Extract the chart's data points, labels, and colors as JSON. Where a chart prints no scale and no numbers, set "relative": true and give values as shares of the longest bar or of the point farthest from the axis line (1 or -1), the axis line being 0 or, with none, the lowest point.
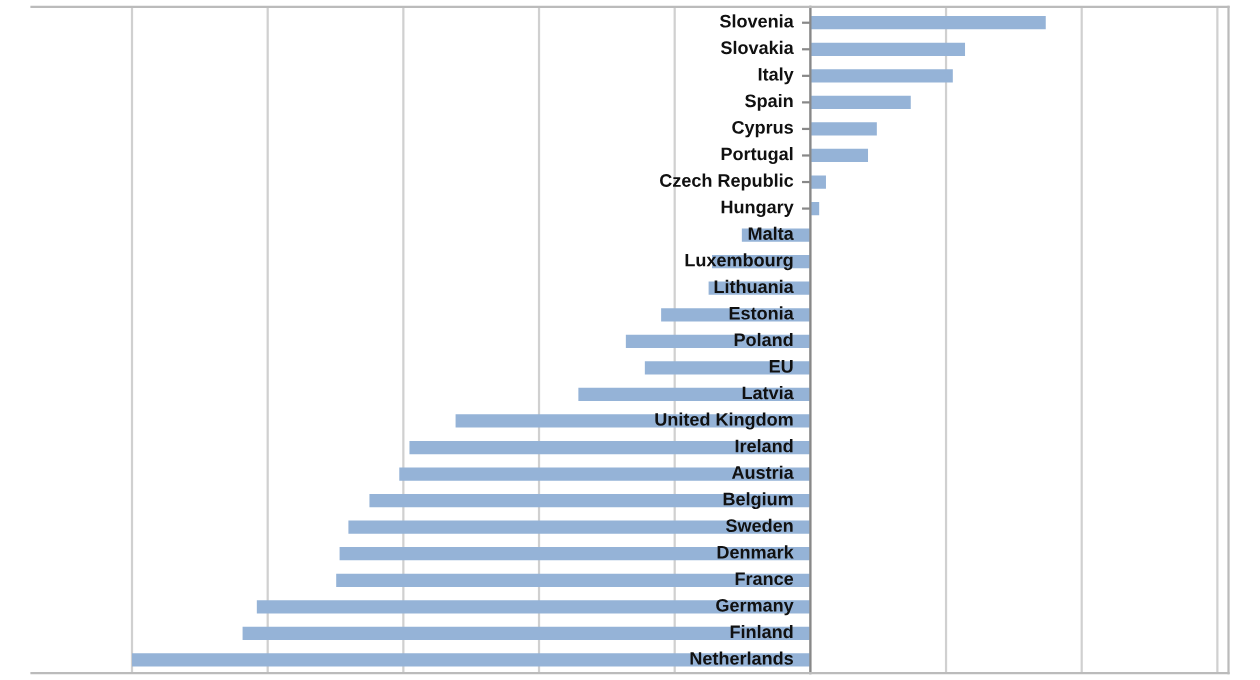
{
  "chart_data": {
    "type": "bar",
    "orientation": "horizontal",
    "relative": true,
    "grid": "x",
    "color": "#95b3d7",
    "categories": [
      "Slovenia",
      "Slovakia",
      "Italy",
      "Spain",
      "Cyprus",
      "Portugal",
      "Czech Republic",
      "Hungary",
      "Malta",
      "Luxembourg",
      "Lithuania",
      "Estonia",
      "Poland",
      "EU",
      "Latvia",
      "United Kingdom",
      "Ireland",
      "Austria",
      "Belgium",
      "Sweden",
      "Denmark",
      "France",
      "Germany",
      "Finland",
      "Netherlands"
    ],
    "values": [
      0.347,
      0.228,
      0.21,
      0.148,
      0.098,
      0.085,
      0.023,
      0.013,
      -0.101,
      -0.145,
      -0.15,
      -0.22,
      -0.272,
      -0.244,
      -0.342,
      -0.523,
      -0.591,
      -0.606,
      -0.65,
      -0.681,
      -0.694,
      -0.699,
      -0.816,
      -0.837,
      -1
    ]
  }
}
